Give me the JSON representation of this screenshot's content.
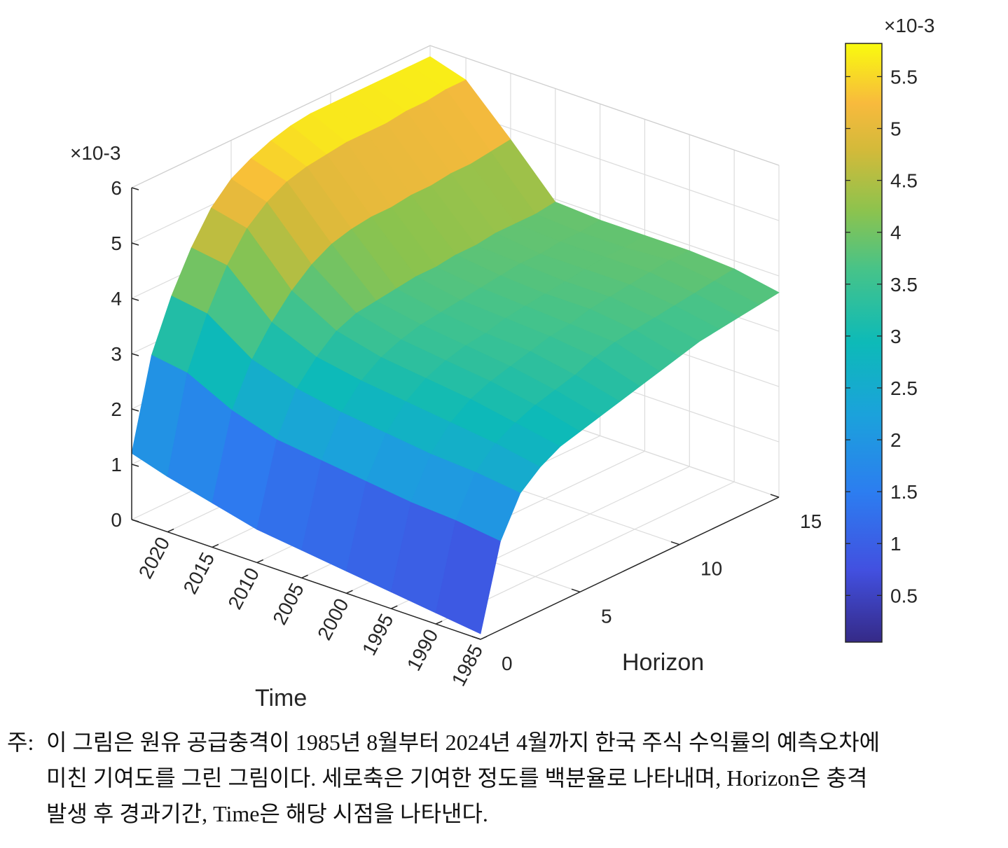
{
  "chart_data": {
    "type": "surface",
    "title": "",
    "xlabel": "Horizon",
    "ylabel": "Time",
    "zlabel": "",
    "z_exponent_label": "×10-3",
    "x_ticks": [
      "0",
      "5",
      "10",
      "15"
    ],
    "y_ticks": [
      "2020",
      "2015",
      "2010",
      "2005",
      "2000",
      "1995",
      "1990",
      "1985"
    ],
    "z_ticks": [
      "0",
      "1",
      "2",
      "3",
      "4",
      "5",
      "6"
    ],
    "xlim": [
      0,
      15
    ],
    "ylim": [
      1985,
      2024
    ],
    "zlim": [
      0,
      0.006
    ],
    "grid": true,
    "colormap": "parula",
    "horizons": [
      0,
      1,
      2,
      3,
      4,
      5,
      6,
      7,
      8,
      9,
      10,
      11,
      12,
      13,
      14,
      15
    ],
    "times": [
      1985,
      1990,
      1995,
      2000,
      2005,
      2010,
      2015,
      2020,
      2024
    ],
    "z_values_e3": [
      [
        0.1,
        1.6,
        2.3,
        2.6,
        2.8,
        2.9,
        3.0,
        3.1,
        3.2,
        3.3,
        3.4,
        3.5,
        3.55,
        3.6,
        3.65,
        3.7
      ],
      [
        0.2,
        1.7,
        2.4,
        2.75,
        2.95,
        3.1,
        3.2,
        3.3,
        3.45,
        3.55,
        3.6,
        3.65,
        3.7,
        3.75,
        3.8,
        3.85
      ],
      [
        0.3,
        1.75,
        2.45,
        2.85,
        3.1,
        3.25,
        3.35,
        3.45,
        3.55,
        3.6,
        3.7,
        3.75,
        3.8,
        3.85,
        3.9,
        3.9
      ],
      [
        0.4,
        1.85,
        2.55,
        2.95,
        3.2,
        3.35,
        3.45,
        3.5,
        3.6,
        3.65,
        3.7,
        3.75,
        3.8,
        3.85,
        3.85,
        3.9
      ],
      [
        0.5,
        1.95,
        2.65,
        3.05,
        3.3,
        3.45,
        3.55,
        3.6,
        3.65,
        3.7,
        3.75,
        3.8,
        3.8,
        3.85,
        3.85,
        3.9
      ],
      [
        0.6,
        2.05,
        2.8,
        3.2,
        3.5,
        3.65,
        3.7,
        3.75,
        3.8,
        3.8,
        3.85,
        3.85,
        3.9,
        3.9,
        3.9,
        3.95
      ],
      [
        0.8,
        2.3,
        3.05,
        3.55,
        3.95,
        4.25,
        4.45,
        4.55,
        4.6,
        4.6,
        4.65,
        4.65,
        4.7,
        4.7,
        4.75,
        4.8
      ],
      [
        1.0,
        2.7,
        3.6,
        4.3,
        4.8,
        5.1,
        5.3,
        5.4,
        5.45,
        5.5,
        5.5,
        5.5,
        5.55,
        5.55,
        5.6,
        5.6
      ],
      [
        1.2,
        2.8,
        3.7,
        4.4,
        4.95,
        5.3,
        5.5,
        5.65,
        5.75,
        5.8,
        5.8,
        5.8,
        5.8,
        5.8,
        5.8,
        5.8
      ]
    ],
    "colorbar": {
      "ticks": [
        "0.5",
        "1",
        "1.5",
        "2",
        "2.5",
        "3",
        "3.5",
        "4",
        "4.5",
        "5",
        "5.5"
      ],
      "tick_values_e3": [
        0.5,
        1.0,
        1.5,
        2.0,
        2.5,
        3.0,
        3.5,
        4.0,
        4.5,
        5.0,
        5.5
      ],
      "range_e3": [
        0.05,
        5.82
      ],
      "exponent_label": "×10-3"
    }
  },
  "caption": {
    "prefix": "주:",
    "line1": "이 그림은 원유 공급충격이 1985년 8월부터 2024년 4월까지 한국 주식 수익률의 예측오차에",
    "line2": "미친 기여도를 그린 그림이다. 세로축은 기여한 정도를 백분율로 나타내며, Horizon은 충격",
    "line3": "발생 후 경과기간, Time은 해당 시점을 나타낸다."
  }
}
